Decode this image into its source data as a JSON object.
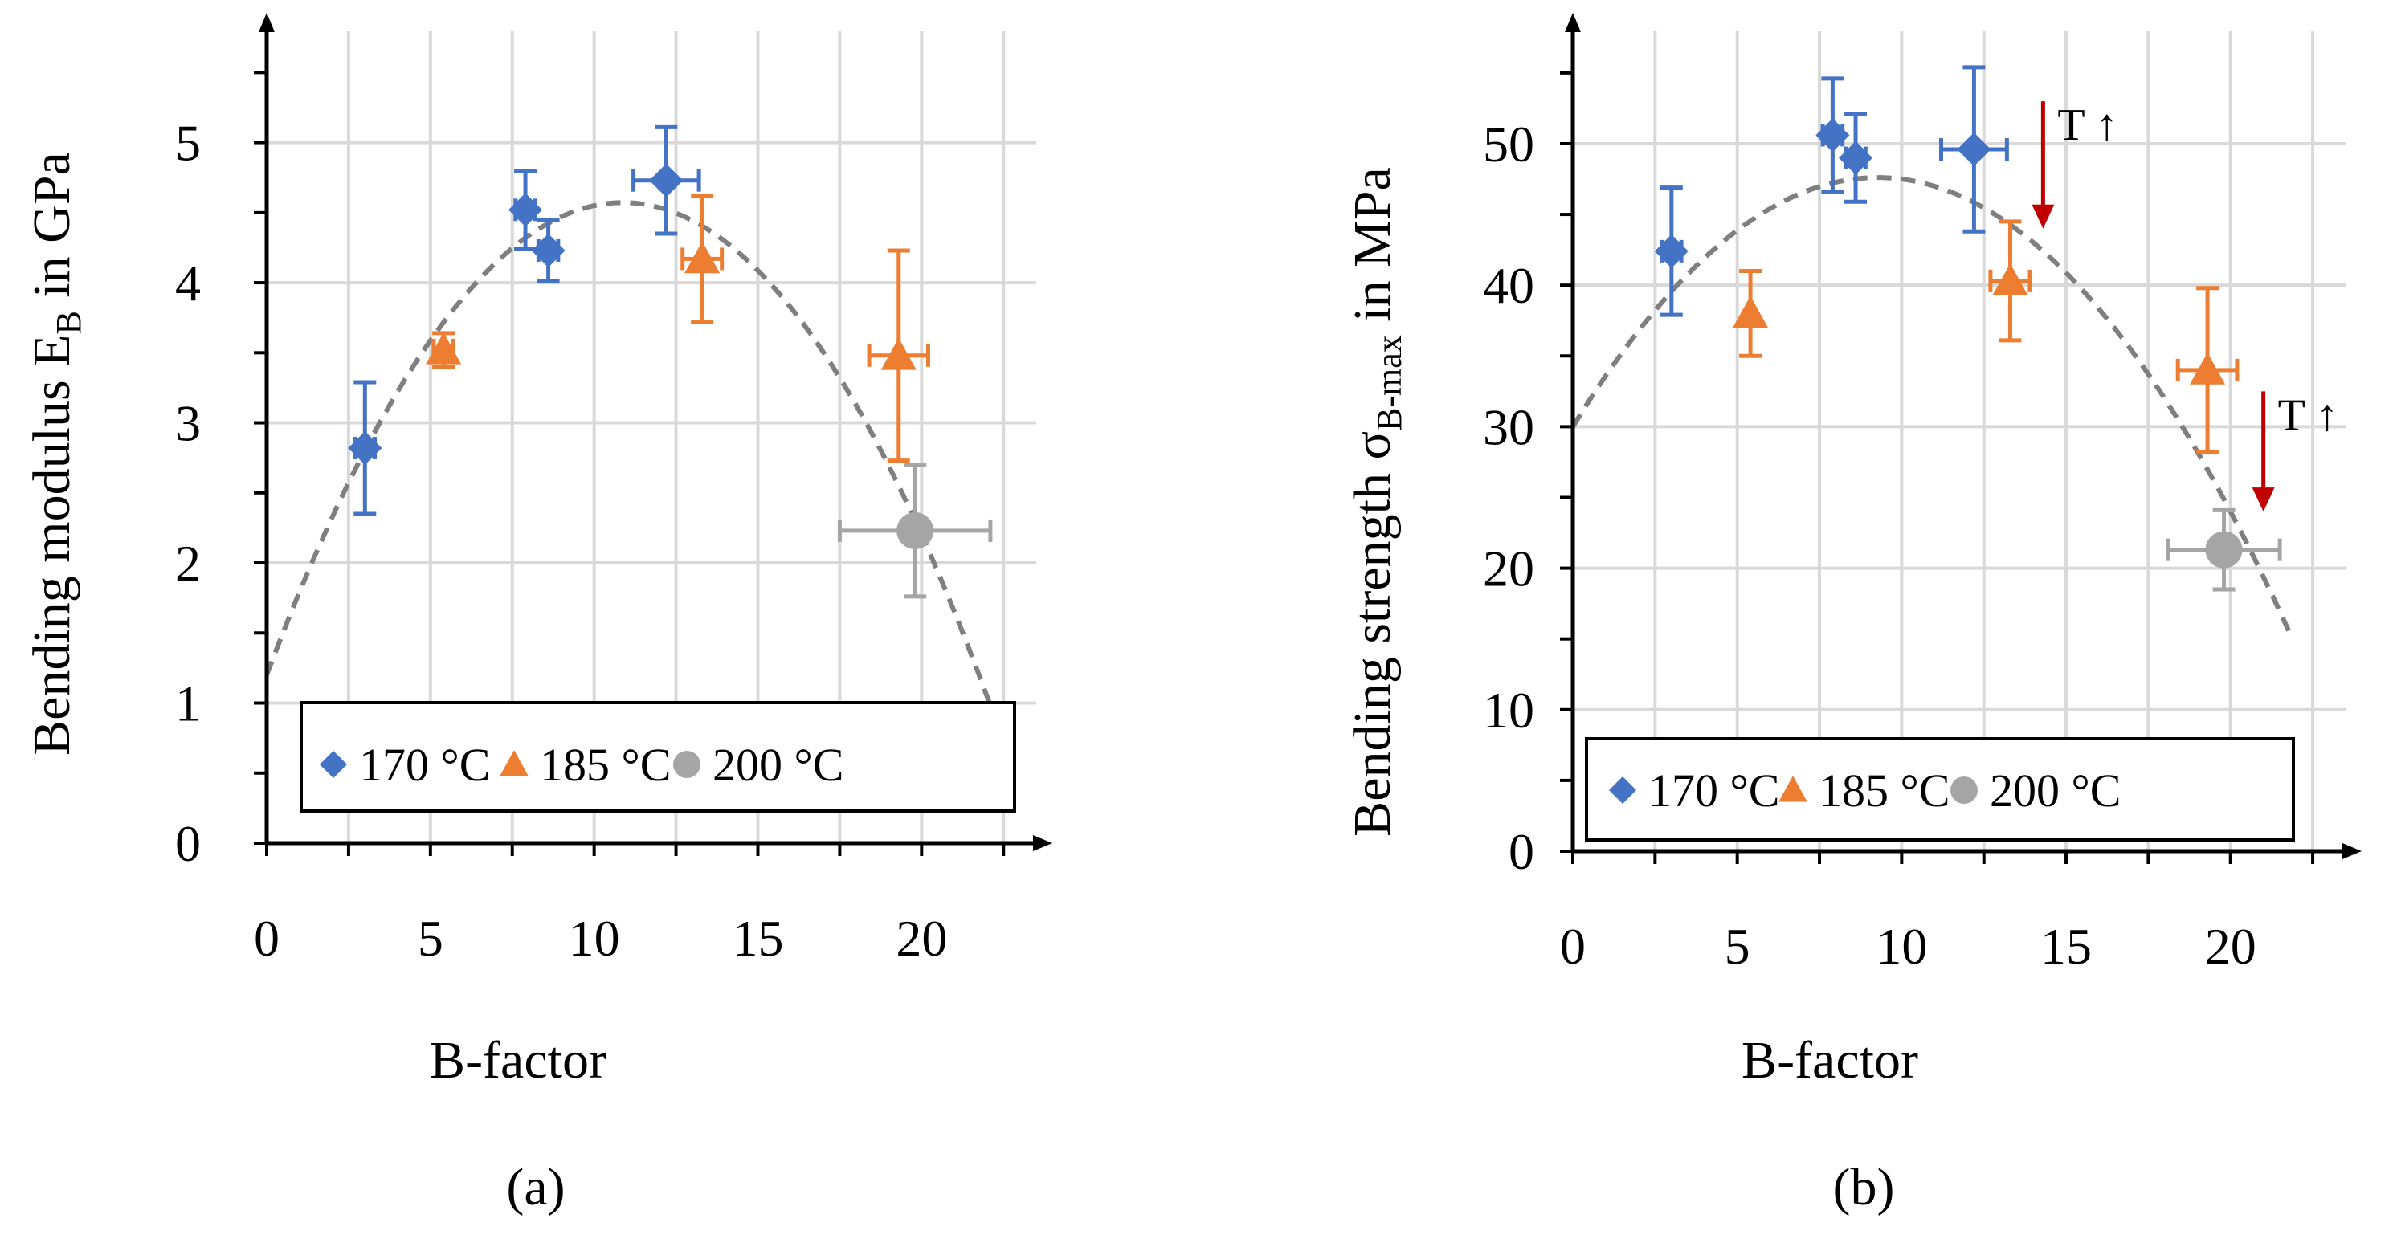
{
  "panels": [
    {
      "id": "a",
      "panel_label": "(a)",
      "legend": [
        {
          "label": "170 °C",
          "marker": "diamond",
          "color": "#4472C4"
        },
        {
          "label": "185 °C",
          "marker": "triangle",
          "color": "#ED7D31"
        },
        {
          "label": "200 °C",
          "marker": "circle",
          "color": "#A5A5A5"
        }
      ],
      "annotations": []
    },
    {
      "id": "b",
      "panel_label": "(b)",
      "legend": [
        {
          "label": "170 °C",
          "marker": "diamond",
          "color": "#4472C4"
        },
        {
          "label": "185 °C",
          "marker": "triangle",
          "color": "#ED7D31"
        },
        {
          "label": "200 °C",
          "marker": "circle",
          "color": "#A5A5A5"
        }
      ],
      "annotations": [
        {
          "text": "T ↑",
          "x": 14.3,
          "y_from": 53,
          "y_to": 44
        },
        {
          "text": "T ↑",
          "x": 21.0,
          "y_from": 32.5,
          "y_to": 24
        }
      ]
    }
  ],
  "chart_data": [
    {
      "type": "scatter",
      "title": "",
      "xlabel": "B-factor",
      "ylabel": "Bending modulus E",
      "ylabel_subscript": "B",
      "ylabel_suffix": " in GPa",
      "xlim": [
        0,
        23.5
      ],
      "ylim": [
        0,
        5.8
      ],
      "xticks": [
        0,
        5,
        10,
        15,
        20
      ],
      "yticks": [
        0,
        1,
        2,
        3,
        4,
        5
      ],
      "grid": true,
      "legend_position": "bottom",
      "series": [
        {
          "name": "170 °C",
          "color": "#4472C4",
          "marker": "diamond",
          "points": [
            {
              "x": 3.0,
              "y": 2.82,
              "yerr": 0.47,
              "xerr": 0.3
            },
            {
              "x": 7.9,
              "y": 4.52,
              "yerr": 0.28,
              "xerr": 0.3
            },
            {
              "x": 8.6,
              "y": 4.23,
              "yerr": 0.22,
              "xerr": 0.3
            },
            {
              "x": 12.2,
              "y": 4.73,
              "yerr": 0.38,
              "xerr": 1.0
            }
          ]
        },
        {
          "name": "185 °C",
          "color": "#ED7D31",
          "marker": "triangle",
          "points": [
            {
              "x": 5.4,
              "y": 3.52,
              "yerr": 0.12,
              "xerr": 0.3
            },
            {
              "x": 13.3,
              "y": 4.17,
              "yerr": 0.45,
              "xerr": 0.6
            },
            {
              "x": 19.3,
              "y": 3.48,
              "yerr": 0.75,
              "xerr": 0.9
            }
          ]
        },
        {
          "name": "200 °C",
          "color": "#A5A5A5",
          "marker": "circle",
          "points": [
            {
              "x": 19.8,
              "y": 2.23,
              "yerr": 0.47,
              "xerr": 2.3
            }
          ]
        }
      ],
      "trendline": {
        "type": "quadratic",
        "coefficients": [
          1.2,
          0.62,
          -0.0285
        ],
        "x_range": [
          0,
          22.1
        ],
        "style": "dashed",
        "color": "#7F7F7F"
      }
    },
    {
      "type": "scatter",
      "title": "",
      "xlabel": "B-factor",
      "ylabel": "Bending strength σ",
      "ylabel_subscript": "B-max",
      "ylabel_suffix": " in MPa",
      "xlim": [
        0,
        23.5
      ],
      "ylim": [
        0,
        58
      ],
      "xticks": [
        0,
        5,
        10,
        15,
        20
      ],
      "yticks": [
        0,
        10,
        20,
        30,
        40,
        50
      ],
      "grid": true,
      "legend_position": "bottom",
      "series": [
        {
          "name": "170 °C",
          "color": "#4472C4",
          "marker": "diamond",
          "points": [
            {
              "x": 3.0,
              "y": 42.4,
              "yerr": 4.5,
              "xerr": 0.3
            },
            {
              "x": 7.9,
              "y": 50.6,
              "yerr": 4.0,
              "xerr": 0.3
            },
            {
              "x": 8.6,
              "y": 49.0,
              "yerr": 3.1,
              "xerr": 0.3
            },
            {
              "x": 12.2,
              "y": 49.6,
              "yerr": 5.8,
              "xerr": 1.0
            }
          ]
        },
        {
          "name": "185 °C",
          "color": "#ED7D31",
          "marker": "triangle",
          "points": [
            {
              "x": 5.4,
              "y": 38.0,
              "yerr": 3.0,
              "xerr": 0.0
            },
            {
              "x": 13.3,
              "y": 40.3,
              "yerr": 4.2,
              "xerr": 0.6
            },
            {
              "x": 19.3,
              "y": 34.0,
              "yerr": 5.8,
              "xerr": 0.9
            }
          ]
        },
        {
          "name": "200 °C",
          "color": "#A5A5A5",
          "marker": "circle",
          "points": [
            {
              "x": 19.8,
              "y": 21.3,
              "yerr": 2.8,
              "xerr": 1.7
            }
          ]
        }
      ],
      "trendline": {
        "type": "quadratic",
        "coefficients": [
          30.0,
          3.8,
          -0.205
        ],
        "x_range": [
          0,
          21.8
        ],
        "style": "dashed",
        "color": "#7F7F7F"
      }
    }
  ]
}
